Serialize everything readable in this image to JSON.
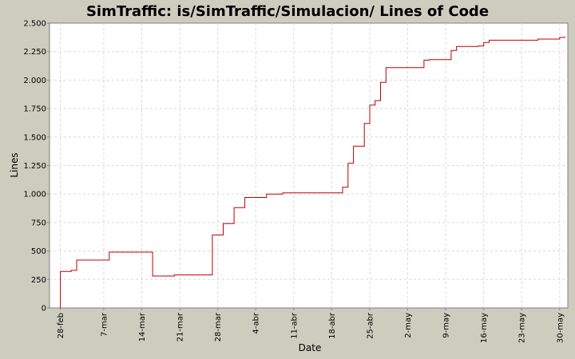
{
  "chart_data": {
    "type": "line",
    "title": "SimTraffic: is/SimTraffic/Simulacion/ Lines of Code",
    "xlabel": "Date",
    "ylabel": "Lines",
    "ylim": [
      0,
      2500
    ],
    "xlim_days": [
      -2.0,
      93.5
    ],
    "grid": true,
    "legend": "none",
    "line_color": "#c00000",
    "y_ticks": [
      0,
      250,
      500,
      750,
      1000,
      1250,
      1500,
      1750,
      2000,
      2250,
      2500
    ],
    "y_tick_labels": [
      "0",
      "250",
      "500",
      "750",
      "1.000",
      "1.250",
      "1.500",
      "1.750",
      "2.000",
      "2.250",
      "2.500"
    ],
    "x_ticks": [
      "28-feb",
      "7-mar",
      "14-mar",
      "21-mar",
      "28-mar",
      "4-abr",
      "11-abr",
      "18-abr",
      "25-abr",
      "2-may",
      "9-may",
      "16-may",
      "23-may",
      "30-may"
    ],
    "series": [
      {
        "x": [
          "28-feb",
          "28-feb",
          "28-feb",
          "1-mar",
          "2-mar",
          "8-mar",
          "16-mar",
          "20-mar",
          "27-mar",
          "27-mar",
          "29-mar",
          "29-mar",
          "31-mar",
          "31-mar",
          "2-abr",
          "2-abr",
          "2-abr",
          "6-abr",
          "9-abr",
          "20-abr",
          "20-abr",
          "21-abr",
          "21-abr",
          "21-abr",
          "22-abr",
          "24-abr",
          "24-abr",
          "25-abr",
          "26-abr",
          "26-abr",
          "27-abr",
          "27-abr",
          "28-abr",
          "5-may",
          "5-may",
          "6-may",
          "10-may",
          "10-may",
          "11-may",
          "11-may",
          "11-may",
          "11-may",
          "15-may",
          "16-may",
          "17-may",
          "26-may",
          "26-may",
          "30-may",
          "30-may",
          "31-may"
        ],
        "y": [
          0,
          10,
          320,
          330,
          420,
          490,
          280,
          290,
          500,
          640,
          720,
          740,
          750,
          880,
          960,
          965,
          970,
          1000,
          1010,
          1050,
          1060,
          1100,
          1240,
          1270,
          1420,
          1420,
          1620,
          1780,
          1800,
          1820,
          1910,
          1980,
          2110,
          2130,
          2175,
          2180,
          2200,
          2260,
          2280,
          2285,
          2290,
          2295,
          2300,
          2330,
          2350,
          2350,
          2360,
          2365,
          2375,
          2380
        ]
      }
    ]
  }
}
